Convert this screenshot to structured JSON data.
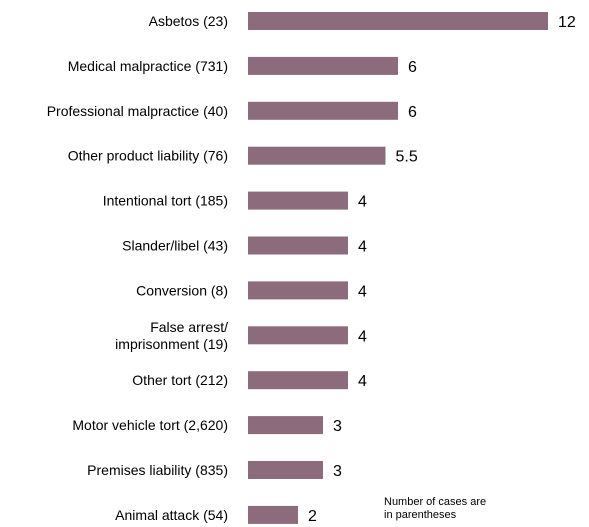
{
  "chart_data": {
    "type": "bar",
    "orientation": "horizontal",
    "categories": [
      [
        "Asbetos (23)"
      ],
      [
        "Medical malpractice (731)"
      ],
      [
        "Professional  malpractice (40)"
      ],
      [
        "Other product liability (76)"
      ],
      [
        "Intentional tort (185)"
      ],
      [
        "Slander/libel (43)"
      ],
      [
        "Conversion (8)"
      ],
      [
        "False arrest/",
        "imprisonment (19)"
      ],
      [
        "Other tort (212)"
      ],
      [
        "Motor vehicle tort (2,620)"
      ],
      [
        "Premises liability (835)"
      ],
      [
        "Animal attack (54)"
      ]
    ],
    "values": [
      12,
      6,
      6,
      5.5,
      4,
      4,
      4,
      4,
      4,
      3,
      3,
      2
    ],
    "value_labels": [
      "12",
      "6",
      "6",
      "5.5",
      "4",
      "4",
      "4",
      "4",
      "4",
      "3",
      "3",
      "2"
    ],
    "bar_color": "#8c6c7c",
    "grid": false,
    "legend": "none"
  },
  "note": {
    "line1": "Number of cases are",
    "line2": "in parentheses"
  }
}
